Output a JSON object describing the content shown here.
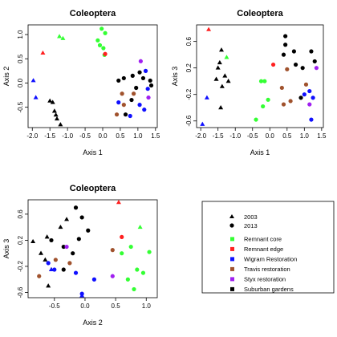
{
  "colors": {
    "Remnant core": "#33ff33",
    "Remnant edge": "#ff2020",
    "Wigram Restoration": "#1010ff",
    "Travis restoration": "#a0522d",
    "Styx restoration": "#a020f0",
    "Suburban gardens": "#000000"
  },
  "legend": {
    "years": [
      {
        "label": "2003",
        "shape": "triangle"
      },
      {
        "label": "2013",
        "shape": "circle"
      }
    ],
    "groups": [
      "Remnant core",
      "Remnant edge",
      "Wigram Restoration",
      "Travis restoration",
      "Styx restoration",
      "Suburban gardens"
    ]
  },
  "chart_data": [
    {
      "type": "scatter",
      "title": "Coleoptera",
      "xlabel": "Axis 1",
      "ylabel": "Axis 2",
      "xlim": [
        -2.12,
        1.55
      ],
      "ylim": [
        -0.92,
        1.2
      ],
      "xticks": [
        -2.0,
        -1.5,
        -1.0,
        -0.5,
        0.0,
        0.5,
        1.0,
        1.5
      ],
      "xtick_labels": [
        "-2.0",
        "-1.5",
        "-1.0",
        "-0.5",
        "0.0",
        "0.5",
        "1.0",
        "1.5"
      ],
      "yticks": [
        -0.5,
        0.0,
        0.5,
        1.0
      ],
      "ytick_labels": [
        "-0.5",
        "0.0",
        "0.5",
        "1.0"
      ],
      "points": [
        {
          "x": -1.23,
          "y": 0.96,
          "group": "Remnant core",
          "year": "2003"
        },
        {
          "x": -1.13,
          "y": 0.92,
          "group": "Remnant core",
          "year": "2003"
        },
        {
          "x": -1.7,
          "y": 0.62,
          "group": "Remnant edge",
          "year": "2003"
        },
        {
          "x": -1.97,
          "y": 0.05,
          "group": "Wigram Restoration",
          "year": "2003"
        },
        {
          "x": -1.9,
          "y": -0.3,
          "group": "Wigram Restoration",
          "year": "2003"
        },
        {
          "x": -1.5,
          "y": -0.37,
          "group": "Suburban gardens",
          "year": "2003"
        },
        {
          "x": -1.42,
          "y": -0.4,
          "group": "Suburban gardens",
          "year": "2003"
        },
        {
          "x": -1.37,
          "y": -0.58,
          "group": "Suburban gardens",
          "year": "2003"
        },
        {
          "x": -1.33,
          "y": -0.66,
          "group": "Suburban gardens",
          "year": "2003"
        },
        {
          "x": -1.3,
          "y": -0.74,
          "group": "Suburban gardens",
          "year": "2003"
        },
        {
          "x": -1.2,
          "y": -0.86,
          "group": "Suburban gardens",
          "year": "2003"
        },
        {
          "x": -0.14,
          "y": 0.88,
          "group": "Remnant core",
          "year": "2013"
        },
        {
          "x": -0.03,
          "y": 1.12,
          "group": "Remnant core",
          "year": "2013"
        },
        {
          "x": 0.07,
          "y": 1.03,
          "group": "Remnant core",
          "year": "2013"
        },
        {
          "x": -0.08,
          "y": 0.78,
          "group": "Remnant core",
          "year": "2013"
        },
        {
          "x": 0.02,
          "y": 0.72,
          "group": "Remnant core",
          "year": "2013"
        },
        {
          "x": 0.05,
          "y": 0.58,
          "group": "Remnant core",
          "year": "2013"
        },
        {
          "x": 0.07,
          "y": 0.6,
          "group": "Remnant edge",
          "year": "2013"
        },
        {
          "x": 0.45,
          "y": 0.05,
          "group": "Suburban gardens",
          "year": "2013"
        },
        {
          "x": 0.6,
          "y": 0.1,
          "group": "Suburban gardens",
          "year": "2013"
        },
        {
          "x": 0.85,
          "y": 0.15,
          "group": "Suburban gardens",
          "year": "2013"
        },
        {
          "x": 1.05,
          "y": 0.22,
          "group": "Suburban gardens",
          "year": "2013"
        },
        {
          "x": 1.15,
          "y": 0.1,
          "group": "Suburban gardens",
          "year": "2013"
        },
        {
          "x": 1.35,
          "y": 0.05,
          "group": "Suburban gardens",
          "year": "2013"
        },
        {
          "x": 1.38,
          "y": -0.05,
          "group": "Suburban gardens",
          "year": "2013"
        },
        {
          "x": 0.95,
          "y": -0.1,
          "group": "Suburban gardens",
          "year": "2013"
        },
        {
          "x": 0.82,
          "y": -0.35,
          "group": "Suburban gardens",
          "year": "2013"
        },
        {
          "x": 0.65,
          "y": -0.65,
          "group": "Suburban gardens",
          "year": "2013"
        },
        {
          "x": 0.55,
          "y": -0.22,
          "group": "Travis restoration",
          "year": "2013"
        },
        {
          "x": 0.88,
          "y": -0.22,
          "group": "Travis restoration",
          "year": "2013"
        },
        {
          "x": 0.6,
          "y": -0.45,
          "group": "Travis restoration",
          "year": "2013"
        },
        {
          "x": 0.4,
          "y": -0.65,
          "group": "Travis restoration",
          "year": "2013"
        },
        {
          "x": 0.45,
          "y": -0.4,
          "group": "Wigram Restoration",
          "year": "2013"
        },
        {
          "x": 0.78,
          "y": -0.68,
          "group": "Wigram Restoration",
          "year": "2013"
        },
        {
          "x": 1.18,
          "y": -0.55,
          "group": "Wigram Restoration",
          "year": "2013"
        },
        {
          "x": 1.05,
          "y": -0.45,
          "group": "Wigram Restoration",
          "year": "2013"
        },
        {
          "x": 1.22,
          "y": 0.25,
          "group": "Wigram Restoration",
          "year": "2013"
        },
        {
          "x": 1.28,
          "y": -0.12,
          "group": "Wigram Restoration",
          "year": "2013"
        },
        {
          "x": 1.08,
          "y": 0.45,
          "group": "Styx restoration",
          "year": "2013"
        },
        {
          "x": 1.3,
          "y": -0.3,
          "group": "Styx restoration",
          "year": "2013"
        }
      ]
    },
    {
      "type": "scatter",
      "title": "Coleoptera",
      "xlabel": "Axis 1",
      "ylabel": "Axis 3",
      "xlim": [
        -2.12,
        1.55
      ],
      "ylim": [
        -0.7,
        0.85
      ],
      "xticks": [
        -2.0,
        -1.5,
        -1.0,
        -0.5,
        0.0,
        0.5,
        1.0,
        1.5
      ],
      "xtick_labels": [
        "-2.0",
        "-1.5",
        "-1.0",
        "-0.5",
        "0.0",
        "0.5",
        "1.0",
        "1.5"
      ],
      "yticks": [
        -0.6,
        -0.2,
        0.2,
        0.6
      ],
      "ytick_labels": [
        "-0.6",
        "-0.2",
        "0.2",
        "0.6"
      ],
      "points": [
        {
          "x": -1.77,
          "y": 0.78,
          "group": "Remnant edge",
          "year": "2003"
        },
        {
          "x": -1.25,
          "y": 0.36,
          "group": "Remnant core",
          "year": "2003"
        },
        {
          "x": -1.4,
          "y": 0.47,
          "group": "Suburban gardens",
          "year": "2003"
        },
        {
          "x": -1.45,
          "y": 0.28,
          "group": "Suburban gardens",
          "year": "2003"
        },
        {
          "x": -1.5,
          "y": 0.2,
          "group": "Suburban gardens",
          "year": "2003"
        },
        {
          "x": -1.55,
          "y": 0.03,
          "group": "Suburban gardens",
          "year": "2003"
        },
        {
          "x": -1.3,
          "y": 0.08,
          "group": "Suburban gardens",
          "year": "2003"
        },
        {
          "x": -1.2,
          "y": 0.0,
          "group": "Suburban gardens",
          "year": "2003"
        },
        {
          "x": -1.38,
          "y": -0.08,
          "group": "Suburban gardens",
          "year": "2003"
        },
        {
          "x": -1.42,
          "y": -0.4,
          "group": "Suburban gardens",
          "year": "2003"
        },
        {
          "x": -1.82,
          "y": -0.25,
          "group": "Wigram Restoration",
          "year": "2003"
        },
        {
          "x": -1.95,
          "y": -0.65,
          "group": "Wigram Restoration",
          "year": "2003"
        },
        {
          "x": -0.25,
          "y": 0.0,
          "group": "Remnant core",
          "year": "2013"
        },
        {
          "x": -0.15,
          "y": 0.0,
          "group": "Remnant core",
          "year": "2013"
        },
        {
          "x": -0.05,
          "y": -0.28,
          "group": "Remnant core",
          "year": "2013"
        },
        {
          "x": -0.2,
          "y": -0.38,
          "group": "Remnant core",
          "year": "2013"
        },
        {
          "x": -0.4,
          "y": -0.58,
          "group": "Remnant core",
          "year": "2013"
        },
        {
          "x": 0.1,
          "y": 0.25,
          "group": "Remnant edge",
          "year": "2013"
        },
        {
          "x": 0.45,
          "y": 0.68,
          "group": "Suburban gardens",
          "year": "2013"
        },
        {
          "x": 0.45,
          "y": 0.55,
          "group": "Suburban gardens",
          "year": "2013"
        },
        {
          "x": 0.4,
          "y": 0.4,
          "group": "Suburban gardens",
          "year": "2013"
        },
        {
          "x": 0.7,
          "y": 0.45,
          "group": "Suburban gardens",
          "year": "2013"
        },
        {
          "x": 0.75,
          "y": 0.25,
          "group": "Suburban gardens",
          "year": "2013"
        },
        {
          "x": 0.95,
          "y": 0.2,
          "group": "Suburban gardens",
          "year": "2013"
        },
        {
          "x": 1.2,
          "y": 0.45,
          "group": "Suburban gardens",
          "year": "2013"
        },
        {
          "x": 1.3,
          "y": 0.3,
          "group": "Suburban gardens",
          "year": "2013"
        },
        {
          "x": 0.9,
          "y": -0.25,
          "group": "Suburban gardens",
          "year": "2013"
        },
        {
          "x": 0.35,
          "y": -0.1,
          "group": "Travis restoration",
          "year": "2013"
        },
        {
          "x": 0.5,
          "y": 0.18,
          "group": "Travis restoration",
          "year": "2013"
        },
        {
          "x": 0.4,
          "y": -0.35,
          "group": "Travis restoration",
          "year": "2013"
        },
        {
          "x": 0.6,
          "y": -0.3,
          "group": "Travis restoration",
          "year": "2013"
        },
        {
          "x": 1.05,
          "y": -0.05,
          "group": "Travis restoration",
          "year": "2013"
        },
        {
          "x": 1.0,
          "y": -0.2,
          "group": "Wigram Restoration",
          "year": "2013"
        },
        {
          "x": 1.15,
          "y": -0.15,
          "group": "Wigram Restoration",
          "year": "2013"
        },
        {
          "x": 1.25,
          "y": -0.25,
          "group": "Wigram Restoration",
          "year": "2013"
        },
        {
          "x": 1.2,
          "y": -0.58,
          "group": "Wigram Restoration",
          "year": "2013"
        },
        {
          "x": 1.15,
          "y": -0.35,
          "group": "Styx restoration",
          "year": "2013"
        },
        {
          "x": 1.35,
          "y": 0.2,
          "group": "Styx restoration",
          "year": "2013"
        }
      ]
    },
    {
      "type": "scatter",
      "title": "Coleoptera",
      "xlabel": "Axis 2",
      "ylabel": "Axis 3",
      "xlim": [
        -0.93,
        1.18
      ],
      "ylim": [
        -0.68,
        0.82
      ],
      "xticks": [
        -0.5,
        0.0,
        0.5,
        1.0
      ],
      "xtick_labels": [
        "-0.5",
        "0.0",
        "0.5",
        "1.0"
      ],
      "yticks": [
        -0.6,
        -0.2,
        0.2,
        0.6
      ],
      "ytick_labels": [
        "-0.6",
        "-0.2",
        "0.2",
        "0.6"
      ],
      "points": [
        {
          "x": 0.55,
          "y": 0.78,
          "group": "Remnant edge",
          "year": "2003"
        },
        {
          "x": 0.9,
          "y": 0.4,
          "group": "Remnant core",
          "year": "2003"
        },
        {
          "x": -0.3,
          "y": 0.52,
          "group": "Suburban gardens",
          "year": "2003"
        },
        {
          "x": -0.4,
          "y": 0.4,
          "group": "Suburban gardens",
          "year": "2003"
        },
        {
          "x": -0.62,
          "y": 0.25,
          "group": "Suburban gardens",
          "year": "2003"
        },
        {
          "x": -0.85,
          "y": 0.18,
          "group": "Suburban gardens",
          "year": "2003"
        },
        {
          "x": -0.72,
          "y": 0.0,
          "group": "Suburban gardens",
          "year": "2003"
        },
        {
          "x": -0.65,
          "y": -0.1,
          "group": "Suburban gardens",
          "year": "2003"
        },
        {
          "x": -0.55,
          "y": -0.25,
          "group": "Suburban gardens",
          "year": "2003"
        },
        {
          "x": -0.6,
          "y": -0.5,
          "group": "Suburban gardens",
          "year": "2003"
        },
        {
          "x": -0.05,
          "y": -0.65,
          "group": "Wigram Restoration",
          "year": "2003"
        },
        {
          "x": -0.55,
          "y": -0.25,
          "group": "Wigram Restoration",
          "year": "2003"
        },
        {
          "x": 0.6,
          "y": 0.0,
          "group": "Remnant core",
          "year": "2013"
        },
        {
          "x": 0.75,
          "y": 0.1,
          "group": "Remnant core",
          "year": "2013"
        },
        {
          "x": 1.05,
          "y": 0.02,
          "group": "Remnant core",
          "year": "2013"
        },
        {
          "x": 0.85,
          "y": -0.25,
          "group": "Remnant core",
          "year": "2013"
        },
        {
          "x": 0.7,
          "y": -0.4,
          "group": "Remnant core",
          "year": "2013"
        },
        {
          "x": 0.95,
          "y": -0.3,
          "group": "Remnant core",
          "year": "2013"
        },
        {
          "x": 0.8,
          "y": -0.55,
          "group": "Remnant core",
          "year": "2013"
        },
        {
          "x": 0.6,
          "y": 0.25,
          "group": "Remnant edge",
          "year": "2013"
        },
        {
          "x": -0.15,
          "y": 0.7,
          "group": "Suburban gardens",
          "year": "2013"
        },
        {
          "x": -0.05,
          "y": 0.55,
          "group": "Suburban gardens",
          "year": "2013"
        },
        {
          "x": 0.05,
          "y": 0.35,
          "group": "Suburban gardens",
          "year": "2013"
        },
        {
          "x": -0.1,
          "y": 0.22,
          "group": "Suburban gardens",
          "year": "2013"
        },
        {
          "x": -0.35,
          "y": 0.1,
          "group": "Suburban gardens",
          "year": "2013"
        },
        {
          "x": -0.2,
          "y": 0.0,
          "group": "Suburban gardens",
          "year": "2013"
        },
        {
          "x": -0.55,
          "y": 0.2,
          "group": "Suburban gardens",
          "year": "2013"
        },
        {
          "x": -0.35,
          "y": -0.25,
          "group": "Suburban gardens",
          "year": "2013"
        },
        {
          "x": -0.75,
          "y": -0.35,
          "group": "Travis restoration",
          "year": "2013"
        },
        {
          "x": -0.48,
          "y": -0.1,
          "group": "Travis restoration",
          "year": "2013"
        },
        {
          "x": 0.45,
          "y": 0.05,
          "group": "Travis restoration",
          "year": "2013"
        },
        {
          "x": -0.25,
          "y": -0.15,
          "group": "Travis restoration",
          "year": "2013"
        },
        {
          "x": 0.15,
          "y": -0.4,
          "group": "Wigram Restoration",
          "year": "2013"
        },
        {
          "x": -0.5,
          "y": -0.25,
          "group": "Wigram Restoration",
          "year": "2013"
        },
        {
          "x": -0.15,
          "y": -0.3,
          "group": "Wigram Restoration",
          "year": "2013"
        },
        {
          "x": -0.6,
          "y": -0.15,
          "group": "Wigram Restoration",
          "year": "2013"
        },
        {
          "x": -0.05,
          "y": -0.62,
          "group": "Wigram Restoration",
          "year": "2013"
        },
        {
          "x": 0.45,
          "y": -0.35,
          "group": "Styx restoration",
          "year": "2013"
        },
        {
          "x": -0.3,
          "y": 0.1,
          "group": "Styx restoration",
          "year": "2013"
        }
      ]
    }
  ]
}
